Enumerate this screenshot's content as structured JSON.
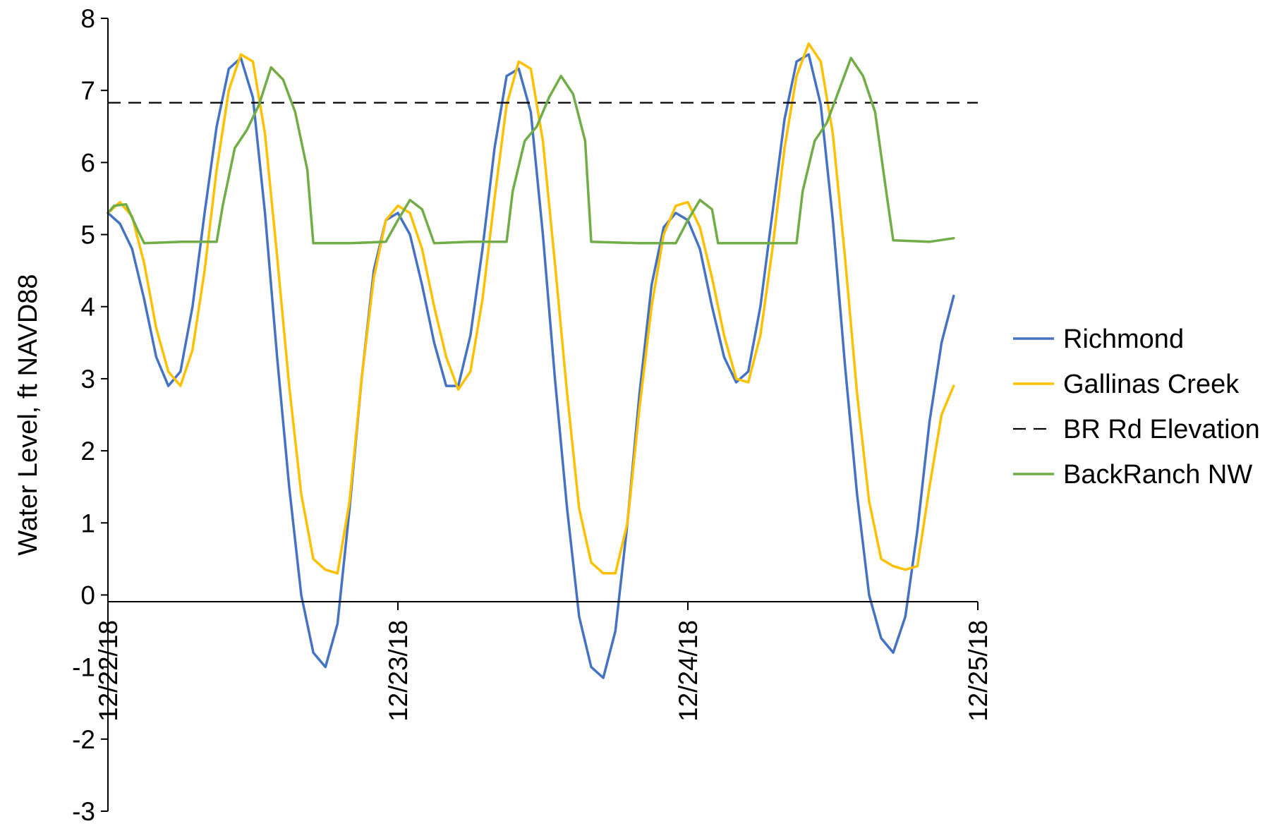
{
  "chart_data": {
    "type": "line",
    "title": "",
    "xlabel": "",
    "ylabel": "Water Level, ft NAVD88",
    "xlim": [
      "12/22/18 00:00",
      "12/25/18 00:00"
    ],
    "ylim": [
      -3,
      8
    ],
    "y_ticks": [
      "-3",
      "-2",
      "-1",
      "0",
      "1",
      "2",
      "3",
      "4",
      "5",
      "6",
      "7",
      "8"
    ],
    "x_ticks": [
      "12/22/18",
      "12/23/18",
      "12/24/18",
      "12/25/18"
    ],
    "grid": false,
    "legend_position": "right",
    "series": [
      {
        "name": "Richmond",
        "color": "#4472C4",
        "style": "solid",
        "points": [
          [
            "12/22/18 00:00",
            5.3
          ],
          [
            "12/22/18 01:00",
            5.15
          ],
          [
            "12/22/18 02:00",
            4.8
          ],
          [
            "12/22/18 03:00",
            4.1
          ],
          [
            "12/22/18 04:00",
            3.3
          ],
          [
            "12/22/18 05:00",
            2.9
          ],
          [
            "12/22/18 06:00",
            3.1
          ],
          [
            "12/22/18 07:00",
            4.0
          ],
          [
            "12/22/18 08:00",
            5.3
          ],
          [
            "12/22/18 09:00",
            6.5
          ],
          [
            "12/22/18 10:00",
            7.3
          ],
          [
            "12/22/18 11:00",
            7.45
          ],
          [
            "12/22/18 12:00",
            6.9
          ],
          [
            "12/22/18 13:00",
            5.3
          ],
          [
            "12/22/18 14:00",
            3.3
          ],
          [
            "12/22/18 15:00",
            1.5
          ],
          [
            "12/22/18 16:00",
            0.0
          ],
          [
            "12/22/18 17:00",
            -0.8
          ],
          [
            "12/22/18 18:00",
            -1.0
          ],
          [
            "12/22/18 19:00",
            -0.4
          ],
          [
            "12/22/18 20:00",
            1.2
          ],
          [
            "12/22/18 21:00",
            3.0
          ],
          [
            "12/22/18 22:00",
            4.5
          ],
          [
            "12/22/18 23:00",
            5.2
          ],
          [
            "12/23/18 00:00",
            5.3
          ],
          [
            "12/23/18 01:00",
            5.0
          ],
          [
            "12/23/18 02:00",
            4.3
          ],
          [
            "12/23/18 03:00",
            3.5
          ],
          [
            "12/23/18 04:00",
            2.9
          ],
          [
            "12/23/18 05:00",
            2.9
          ],
          [
            "12/23/18 06:00",
            3.6
          ],
          [
            "12/23/18 07:00",
            4.8
          ],
          [
            "12/23/18 08:00",
            6.2
          ],
          [
            "12/23/18 09:00",
            7.2
          ],
          [
            "12/23/18 10:00",
            7.3
          ],
          [
            "12/23/18 11:00",
            6.7
          ],
          [
            "12/23/18 12:00",
            5.0
          ],
          [
            "12/23/18 13:00",
            3.0
          ],
          [
            "12/23/18 14:00",
            1.2
          ],
          [
            "12/23/18 15:00",
            -0.3
          ],
          [
            "12/23/18 16:00",
            -1.0
          ],
          [
            "12/23/18 17:00",
            -1.15
          ],
          [
            "12/23/18 18:00",
            -0.5
          ],
          [
            "12/23/18 19:00",
            1.0
          ],
          [
            "12/23/18 20:00",
            2.8
          ],
          [
            "12/23/18 21:00",
            4.3
          ],
          [
            "12/23/18 22:00",
            5.1
          ],
          [
            "12/23/18 23:00",
            5.3
          ],
          [
            "12/24/18 00:00",
            5.2
          ],
          [
            "12/24/18 01:00",
            4.8
          ],
          [
            "12/24/18 02:00",
            4.0
          ],
          [
            "12/24/18 03:00",
            3.3
          ],
          [
            "12/24/18 04:00",
            2.95
          ],
          [
            "12/24/18 05:00",
            3.1
          ],
          [
            "12/24/18 06:00",
            4.0
          ],
          [
            "12/24/18 07:00",
            5.3
          ],
          [
            "12/24/18 08:00",
            6.6
          ],
          [
            "12/24/18 09:00",
            7.4
          ],
          [
            "12/24/18 10:00",
            7.5
          ],
          [
            "12/24/18 11:00",
            6.8
          ],
          [
            "12/24/18 12:00",
            5.2
          ],
          [
            "12/24/18 13:00",
            3.2
          ],
          [
            "12/24/18 14:00",
            1.4
          ],
          [
            "12/24/18 15:00",
            0.0
          ],
          [
            "12/24/18 16:00",
            -0.6
          ],
          [
            "12/24/18 17:00",
            -0.8
          ],
          [
            "12/24/18 18:00",
            -0.3
          ],
          [
            "12/24/18 19:00",
            0.9
          ],
          [
            "12/24/18 20:00",
            2.4
          ],
          [
            "12/24/18 21:00",
            3.5
          ],
          [
            "12/24/18 22:00",
            4.15
          ]
        ]
      },
      {
        "name": "Gallinas Creek",
        "color": "#FFC000",
        "style": "solid",
        "points": [
          [
            "12/22/18 00:00",
            5.3
          ],
          [
            "12/22/18 01:00",
            5.45
          ],
          [
            "12/22/18 02:00",
            5.25
          ],
          [
            "12/22/18 03:00",
            4.6
          ],
          [
            "12/22/18 04:00",
            3.7
          ],
          [
            "12/22/18 05:00",
            3.1
          ],
          [
            "12/22/18 06:00",
            2.9
          ],
          [
            "12/22/18 07:00",
            3.4
          ],
          [
            "12/22/18 08:00",
            4.5
          ],
          [
            "12/22/18 09:00",
            5.9
          ],
          [
            "12/22/18 10:00",
            7.0
          ],
          [
            "12/22/18 11:00",
            7.5
          ],
          [
            "12/22/18 12:00",
            7.4
          ],
          [
            "12/22/18 13:00",
            6.4
          ],
          [
            "12/22/18 14:00",
            4.7
          ],
          [
            "12/22/18 15:00",
            2.9
          ],
          [
            "12/22/18 16:00",
            1.4
          ],
          [
            "12/22/18 17:00",
            0.5
          ],
          [
            "12/22/18 18:00",
            0.35
          ],
          [
            "12/22/18 19:00",
            0.3
          ],
          [
            "12/22/18 20:00",
            1.3
          ],
          [
            "12/22/18 21:00",
            3.0
          ],
          [
            "12/22/18 22:00",
            4.4
          ],
          [
            "12/22/18 23:00",
            5.2
          ],
          [
            "12/23/18 00:00",
            5.4
          ],
          [
            "12/23/18 01:00",
            5.3
          ],
          [
            "12/23/18 02:00",
            4.8
          ],
          [
            "12/23/18 03:00",
            4.0
          ],
          [
            "12/23/18 04:00",
            3.3
          ],
          [
            "12/23/18 05:00",
            2.85
          ],
          [
            "12/23/18 06:00",
            3.1
          ],
          [
            "12/23/18 07:00",
            4.1
          ],
          [
            "12/23/18 08:00",
            5.5
          ],
          [
            "12/23/18 09:00",
            6.8
          ],
          [
            "12/23/18 10:00",
            7.4
          ],
          [
            "12/23/18 11:00",
            7.3
          ],
          [
            "12/23/18 12:00",
            6.3
          ],
          [
            "12/23/18 13:00",
            4.6
          ],
          [
            "12/23/18 14:00",
            2.8
          ],
          [
            "12/23/18 15:00",
            1.2
          ],
          [
            "12/23/18 16:00",
            0.45
          ],
          [
            "12/23/18 17:00",
            0.3
          ],
          [
            "12/23/18 18:00",
            0.3
          ],
          [
            "12/23/18 19:00",
            1.0
          ],
          [
            "12/23/18 20:00",
            2.6
          ],
          [
            "12/23/18 21:00",
            4.0
          ],
          [
            "12/23/18 22:00",
            5.0
          ],
          [
            "12/23/18 23:00",
            5.4
          ],
          [
            "12/24/18 00:00",
            5.45
          ],
          [
            "12/24/18 01:00",
            5.1
          ],
          [
            "12/24/18 02:00",
            4.4
          ],
          [
            "12/24/18 03:00",
            3.6
          ],
          [
            "12/24/18 04:00",
            3.0
          ],
          [
            "12/24/18 05:00",
            2.95
          ],
          [
            "12/24/18 06:00",
            3.6
          ],
          [
            "12/24/18 07:00",
            4.8
          ],
          [
            "12/24/18 08:00",
            6.2
          ],
          [
            "12/24/18 09:00",
            7.2
          ],
          [
            "12/24/18 10:00",
            7.65
          ],
          [
            "12/24/18 11:00",
            7.4
          ],
          [
            "12/24/18 12:00",
            6.4
          ],
          [
            "12/24/18 13:00",
            4.7
          ],
          [
            "12/24/18 14:00",
            2.8
          ],
          [
            "12/24/18 15:00",
            1.3
          ],
          [
            "12/24/18 16:00",
            0.5
          ],
          [
            "12/24/18 17:00",
            0.4
          ],
          [
            "12/24/18 18:00",
            0.35
          ],
          [
            "12/24/18 19:00",
            0.4
          ],
          [
            "12/24/18 20:00",
            1.5
          ],
          [
            "12/24/18 21:00",
            2.5
          ],
          [
            "12/24/18 22:00",
            2.9
          ]
        ]
      },
      {
        "name": "BR Rd Elevation",
        "color": "#000000",
        "style": "dashed",
        "points": [
          [
            "12/22/18 00:00",
            6.83
          ],
          [
            "12/25/18 00:00",
            6.83
          ]
        ]
      },
      {
        "name": "BackRanch NW",
        "color": "#70AD47",
        "style": "solid",
        "points": [
          [
            "12/22/18 00:00",
            5.3
          ],
          [
            "12/22/18 00:30",
            5.4
          ],
          [
            "12/22/18 01:30",
            5.42
          ],
          [
            "12/22/18 02:30",
            5.05
          ],
          [
            "12/22/18 03:00",
            4.88
          ],
          [
            "12/22/18 06:00",
            4.9
          ],
          [
            "12/22/18 09:00",
            4.9
          ],
          [
            "12/22/18 09:30",
            5.4
          ],
          [
            "12/22/18 10:30",
            6.2
          ],
          [
            "12/22/18 11:30",
            6.45
          ],
          [
            "12/22/18 12:30",
            6.8
          ],
          [
            "12/22/18 13:30",
            7.32
          ],
          [
            "12/22/18 14:30",
            7.15
          ],
          [
            "12/22/18 15:30",
            6.7
          ],
          [
            "12/22/18 16:30",
            5.9
          ],
          [
            "12/22/18 17:00",
            4.88
          ],
          [
            "12/22/18 20:00",
            4.88
          ],
          [
            "12/22/18 23:00",
            4.9
          ],
          [
            "12/23/18 00:00",
            5.2
          ],
          [
            "12/23/18 01:00",
            5.48
          ],
          [
            "12/23/18 02:00",
            5.35
          ],
          [
            "12/23/18 03:00",
            4.88
          ],
          [
            "12/23/18 06:00",
            4.9
          ],
          [
            "12/23/18 09:00",
            4.9
          ],
          [
            "12/23/18 09:30",
            5.6
          ],
          [
            "12/23/18 10:30",
            6.3
          ],
          [
            "12/23/18 11:30",
            6.5
          ],
          [
            "12/23/18 12:30",
            6.9
          ],
          [
            "12/23/18 13:30",
            7.2
          ],
          [
            "12/23/18 14:30",
            6.95
          ],
          [
            "12/23/18 15:30",
            6.3
          ],
          [
            "12/23/18 16:00",
            4.9
          ],
          [
            "12/23/18 20:00",
            4.88
          ],
          [
            "12/23/18 23:00",
            4.88
          ],
          [
            "12/24/18 00:00",
            5.2
          ],
          [
            "12/24/18 01:00",
            5.48
          ],
          [
            "12/24/18 02:00",
            5.35
          ],
          [
            "12/24/18 02:30",
            4.88
          ],
          [
            "12/24/18 06:00",
            4.88
          ],
          [
            "12/24/18 09:00",
            4.88
          ],
          [
            "12/24/18 09:30",
            5.6
          ],
          [
            "12/24/18 10:30",
            6.3
          ],
          [
            "12/24/18 11:30",
            6.55
          ],
          [
            "12/24/18 12:30",
            7.0
          ],
          [
            "12/24/18 13:30",
            7.45
          ],
          [
            "12/24/18 14:30",
            7.2
          ],
          [
            "12/24/18 15:30",
            6.7
          ],
          [
            "12/24/18 16:30",
            5.5
          ],
          [
            "12/24/18 17:00",
            4.92
          ],
          [
            "12/24/18 20:00",
            4.9
          ],
          [
            "12/24/18 22:00",
            4.95
          ]
        ]
      }
    ]
  }
}
